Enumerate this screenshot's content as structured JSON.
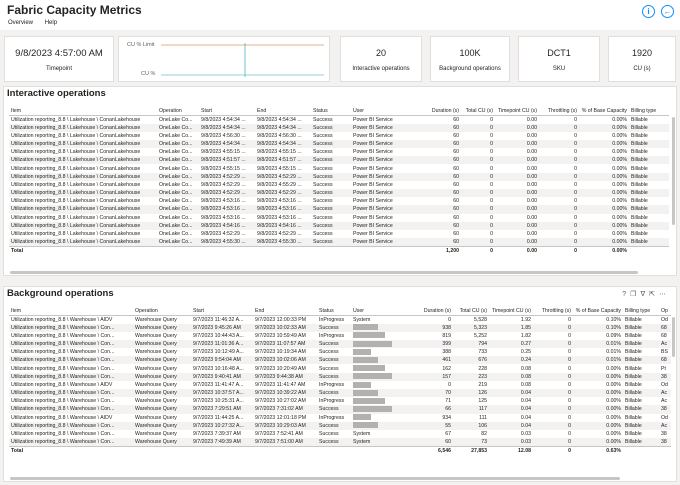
{
  "app": {
    "title": "Fabric Capacity Metrics",
    "menu": [
      "Overview",
      "Help"
    ]
  },
  "cards": {
    "timepoint": {
      "value": "9/8/2023 4:57:00 AM",
      "label": "Timepoint"
    },
    "interactive": {
      "value": "20",
      "label": "Interactive operations"
    },
    "background": {
      "value": "100K",
      "label": "Background operations"
    },
    "sku": {
      "value": "DCT1",
      "label": "SKU"
    },
    "cu": {
      "value": "1920",
      "label": "CU (s)"
    }
  },
  "chart": {
    "limit_label": "CU % Limit",
    "cu_label": "CU %"
  },
  "interactive": {
    "title": "Interactive operations",
    "columns": [
      "Item",
      "Operation",
      "Start",
      "End",
      "Status",
      "User",
      "Duration (s)",
      "Total CU (s)",
      "Timepoint CU (s)",
      "Throttling (s)",
      "% of Base Capacity",
      "Billing type"
    ],
    "rows": [
      [
        "Utilization reporting_8.8 \\ Lakehouse \\ ConanLakehouse",
        "OneLake Co...",
        "9/8/2023 4:54:34 ...",
        "9/8/2023 4:54:34 ...",
        "Success",
        "Power BI Service",
        "60",
        "0",
        "0.00",
        "0",
        "0.00%",
        "Billable"
      ],
      [
        "Utilization reporting_8.8 \\ Lakehouse \\ ConanLakehouse",
        "OneLake Co...",
        "9/8/2023 4:54:34 ...",
        "9/8/2023 4:54:34 ...",
        "Success",
        "Power BI Service",
        "60",
        "0",
        "0.00",
        "0",
        "0.00%",
        "Billable"
      ],
      [
        "Utilization reporting_8.8 \\ Lakehouse \\ ConanLakehouse",
        "OneLake Co...",
        "9/8/2023 4:56:30 ...",
        "9/8/2023 4:56:30 ...",
        "Success",
        "Power BI Service",
        "60",
        "0",
        "0.00",
        "0",
        "0.00%",
        "Billable"
      ],
      [
        "Utilization reporting_8.8 \\ Lakehouse \\ ConanLakehouse",
        "OneLake Co...",
        "9/8/2023 4:54:34 ...",
        "9/8/2023 4:54:34 ...",
        "Success",
        "Power BI Service",
        "60",
        "0",
        "0.00",
        "0",
        "0.00%",
        "Billable"
      ],
      [
        "Utilization reporting_8.8 \\ Lakehouse \\ ConanLakehouse",
        "OneLake Co...",
        "9/8/2023 4:55:15 ...",
        "9/8/2023 4:55:15 ...",
        "Success",
        "Power BI Service",
        "60",
        "0",
        "0.00",
        "0",
        "0.00%",
        "Billable"
      ],
      [
        "Utilization reporting_8.8 \\ Lakehouse \\ ConanLakehouse",
        "OneLake Co...",
        "9/8/2023 4:51:57 ...",
        "9/8/2023 4:51:57 ...",
        "Success",
        "Power BI Service",
        "60",
        "0",
        "0.00",
        "0",
        "0.00%",
        "Billable"
      ],
      [
        "Utilization reporting_8.8 \\ Lakehouse \\ ConanLakehouse",
        "OneLake Co...",
        "9/8/2023 4:55:15 ...",
        "9/8/2023 4:55:15 ...",
        "Success",
        "Power BI Service",
        "60",
        "0",
        "0.00",
        "0",
        "0.00%",
        "Billable"
      ],
      [
        "Utilization reporting_8.8 \\ Lakehouse \\ ConanLakehouse",
        "OneLake Co...",
        "9/8/2023 4:52:29 ...",
        "9/8/2023 4:52:29 ...",
        "Success",
        "Power BI Service",
        "60",
        "0",
        "0.00",
        "0",
        "0.00%",
        "Billable"
      ],
      [
        "Utilization reporting_8.8 \\ Lakehouse \\ ConanLakehouse",
        "OneLake Co...",
        "9/8/2023 4:52:29 ...",
        "9/8/2023 4:55:29 ...",
        "Success",
        "Power BI Service",
        "60",
        "0",
        "0.00",
        "0",
        "0.00%",
        "Billable"
      ],
      [
        "Utilization reporting_8.8 \\ Lakehouse \\ ConanLakehouse",
        "OneLake Co...",
        "9/8/2023 4:52:29 ...",
        "9/8/2023 4:52:29 ...",
        "Success",
        "Power BI Service",
        "60",
        "0",
        "0.00",
        "0",
        "0.00%",
        "Billable"
      ],
      [
        "Utilization reporting_8.8 \\ Lakehouse \\ ConanLakehouse",
        "OneLake Co...",
        "9/8/2023 4:53:16 ...",
        "9/8/2023 4:53:16 ...",
        "Success",
        "Power BI Service",
        "60",
        "0",
        "0.00",
        "0",
        "0.00%",
        "Billable"
      ],
      [
        "Utilization reporting_8.8 \\ Lakehouse \\ ConanLakehouse",
        "OneLake Co...",
        "9/8/2023 4:53:16 ...",
        "9/8/2023 4:53:16 ...",
        "Success",
        "Power BI Service",
        "60",
        "0",
        "0.00",
        "0",
        "0.00%",
        "Billable"
      ],
      [
        "Utilization reporting_8.8 \\ Lakehouse \\ ConanLakehouse",
        "OneLake Co...",
        "9/8/2023 4:53:16 ...",
        "9/8/2023 4:53:16 ...",
        "Success",
        "Power BI Service",
        "60",
        "0",
        "0.00",
        "0",
        "0.00%",
        "Billable"
      ],
      [
        "Utilization reporting_8.8 \\ Lakehouse \\ ConanLakehouse",
        "OneLake Co...",
        "9/8/2023 4:54:16 ...",
        "9/8/2023 4:54:16 ...",
        "Success",
        "Power BI Service",
        "60",
        "0",
        "0.00",
        "0",
        "0.00%",
        "Billable"
      ],
      [
        "Utilization reporting_8.8 \\ Lakehouse \\ ConanLakehouse",
        "OneLake Co...",
        "9/8/2023 4:52:29 ...",
        "9/8/2023 4:52:29 ...",
        "Success",
        "Power BI Service",
        "60",
        "0",
        "0.00",
        "0",
        "0.00%",
        "Billable"
      ],
      [
        "Utilization reporting_8.8 \\ Lakehouse \\ ConanLakehouse",
        "OneLake Co...",
        "9/8/2023 4:55:30 ...",
        "9/8/2023 4:55:30 ...",
        "Success",
        "Power BI Service",
        "60",
        "0",
        "0.00",
        "0",
        "0.00%",
        "Billable"
      ]
    ],
    "total": [
      "Total",
      "",
      "",
      "",
      "",
      "",
      "1,200",
      "0",
      "0.00",
      "0",
      "0.00%",
      ""
    ]
  },
  "background": {
    "title": "Background operations",
    "columns": [
      "Item",
      "Operation",
      "Start",
      "End",
      "Status",
      "User",
      "Duration (s)",
      "Total CU (s)",
      "Timepoint CU (s)",
      "Throttling (s)",
      "% of Base Capacity",
      "Billing type",
      "Op"
    ],
    "rows": [
      [
        "Utilization reporting_8.8 \\ Warehouse \\ AIDV",
        "Warehouse Query",
        "9/7/2023 11:46:32 A...",
        "9/7/2023 12:00:33 PM",
        "InProgress",
        "System",
        "0",
        "5,528",
        "1.92",
        "0",
        "0.10%",
        "Billable",
        "Od"
      ],
      [
        "Utilization reporting_8.8 \\ Warehouse \\ Con...",
        "Warehouse Query",
        "9/7/2023 9:45:26 AM",
        "9/7/2023 10:02:33 AM",
        "Success",
        "",
        "938",
        "5,323",
        "1.85",
        "0",
        "0.10%",
        "Billable",
        "68"
      ],
      [
        "Utilization reporting_8.8 \\ Warehouse \\ Con...",
        "Warehouse Query",
        "9/7/2023 10:44:43 A...",
        "9/7/2023 10:59:49 AM",
        "InProgress",
        "",
        "819",
        "5,252",
        "1.82",
        "0",
        "0.09%",
        "Billable",
        "68"
      ],
      [
        "Utilization reporting_8.8 \\ Warehouse \\ Con...",
        "Warehouse Query",
        "9/7/2023 11:01:36 A...",
        "9/7/2023 11:07:57 AM",
        "Success",
        "",
        "399",
        "794",
        "0.27",
        "0",
        "0.01%",
        "Billable",
        "Ac"
      ],
      [
        "Utilization reporting_8.8 \\ Warehouse \\ Con...",
        "Warehouse Query",
        "9/7/2023 10:12:49 A...",
        "9/7/2023 10:19:34 AM",
        "Success",
        "",
        "388",
        "733",
        "0.25",
        "0",
        "0.01%",
        "Billable",
        "BS"
      ],
      [
        "Utilization reporting_8.8 \\ Warehouse \\ Con...",
        "Warehouse Query",
        "9/7/2023 9:54:04 AM",
        "9/7/2023 10:02:06 AM",
        "Success",
        "",
        "461",
        "676",
        "0.24",
        "0",
        "0.01%",
        "Billable",
        "68"
      ],
      [
        "Utilization reporting_8.8 \\ Warehouse \\ Con...",
        "Warehouse Query",
        "9/7/2023 10:16:48 A...",
        "9/7/2023 10:20:49 AM",
        "Success",
        "",
        "162",
        "228",
        "0.08",
        "0",
        "0.00%",
        "Billable",
        "Pt"
      ],
      [
        "Utilization reporting_8.8 \\ Warehouse \\ Con...",
        "Warehouse Query",
        "9/7/2023 9:40:41 AM",
        "9/7/2023 9:44:38 AM",
        "Success",
        "",
        "157",
        "223",
        "0.08",
        "0",
        "0.00%",
        "Billable",
        "38"
      ],
      [
        "Utilization reporting_8.8 \\ Warehouse \\ AIDV",
        "Warehouse Query",
        "9/7/2023 11:41:47 A...",
        "9/7/2023 11:41:47 AM",
        "InProgress",
        "",
        "0",
        "219",
        "0.08",
        "0",
        "0.00%",
        "Billable",
        "Od"
      ],
      [
        "Utilization reporting_8.8 \\ Warehouse \\ Con...",
        "Warehouse Query",
        "9/7/2023 10:37:57 A...",
        "9/7/2023 10:39:22 AM",
        "Success",
        "",
        "70",
        "126",
        "0.04",
        "0",
        "0.00%",
        "Billable",
        "Ac"
      ],
      [
        "Utilization reporting_8.8 \\ Warehouse \\ Con...",
        "Warehouse Query",
        "9/7/2023 10:25:31 A...",
        "9/7/2023 10:27:02 AM",
        "InProgress",
        "",
        "71",
        "125",
        "0.04",
        "0",
        "0.00%",
        "Billable",
        "Ac"
      ],
      [
        "Utilization reporting_8.8 \\ Warehouse \\ Con...",
        "Warehouse Query",
        "9/7/2023 7:29:51 AM",
        "9/7/2023 7:31:02 AM",
        "Success",
        "",
        "66",
        "117",
        "0.04",
        "0",
        "0.00%",
        "Billable",
        "38"
      ],
      [
        "Utilization reporting_8.8 \\ Warehouse \\ AIDV",
        "Warehouse Query",
        "9/7/2023 11:44:25 A...",
        "9/7/2023 12:01:18 PM",
        "InProgress",
        "",
        "934",
        "111",
        "0.04",
        "0",
        "0.00%",
        "Billable",
        "Od"
      ],
      [
        "Utilization reporting_8.8 \\ Warehouse \\ Con...",
        "Warehouse Query",
        "9/7/2023 10:27:32 A...",
        "9/7/2023 10:29:03 AM",
        "Success",
        "",
        "55",
        "106",
        "0.04",
        "0",
        "0.00%",
        "Billable",
        "Ac"
      ],
      [
        "Utilization reporting_8.8 \\ Warehouse \\ Con...",
        "Warehouse Query",
        "9/7/2023 7:39:37 AM",
        "9/7/2023 7:52:41 AM",
        "Success",
        "System",
        "67",
        "82",
        "0.03",
        "0",
        "0.00%",
        "Billable",
        "38"
      ],
      [
        "Utilization reporting_8.8 \\ Warehouse \\ Con...",
        "Warehouse Query",
        "9/7/2023 7:49:39 AM",
        "9/7/2023 7:51:00 AM",
        "Success",
        "System",
        "60",
        "73",
        "0.03",
        "0",
        "0.00%",
        "Billable",
        "38"
      ]
    ],
    "total": [
      "Total",
      "",
      "",
      "",
      "",
      "",
      "6,546",
      "27,853",
      "12.08",
      "0",
      "0.63%",
      "",
      ""
    ]
  }
}
